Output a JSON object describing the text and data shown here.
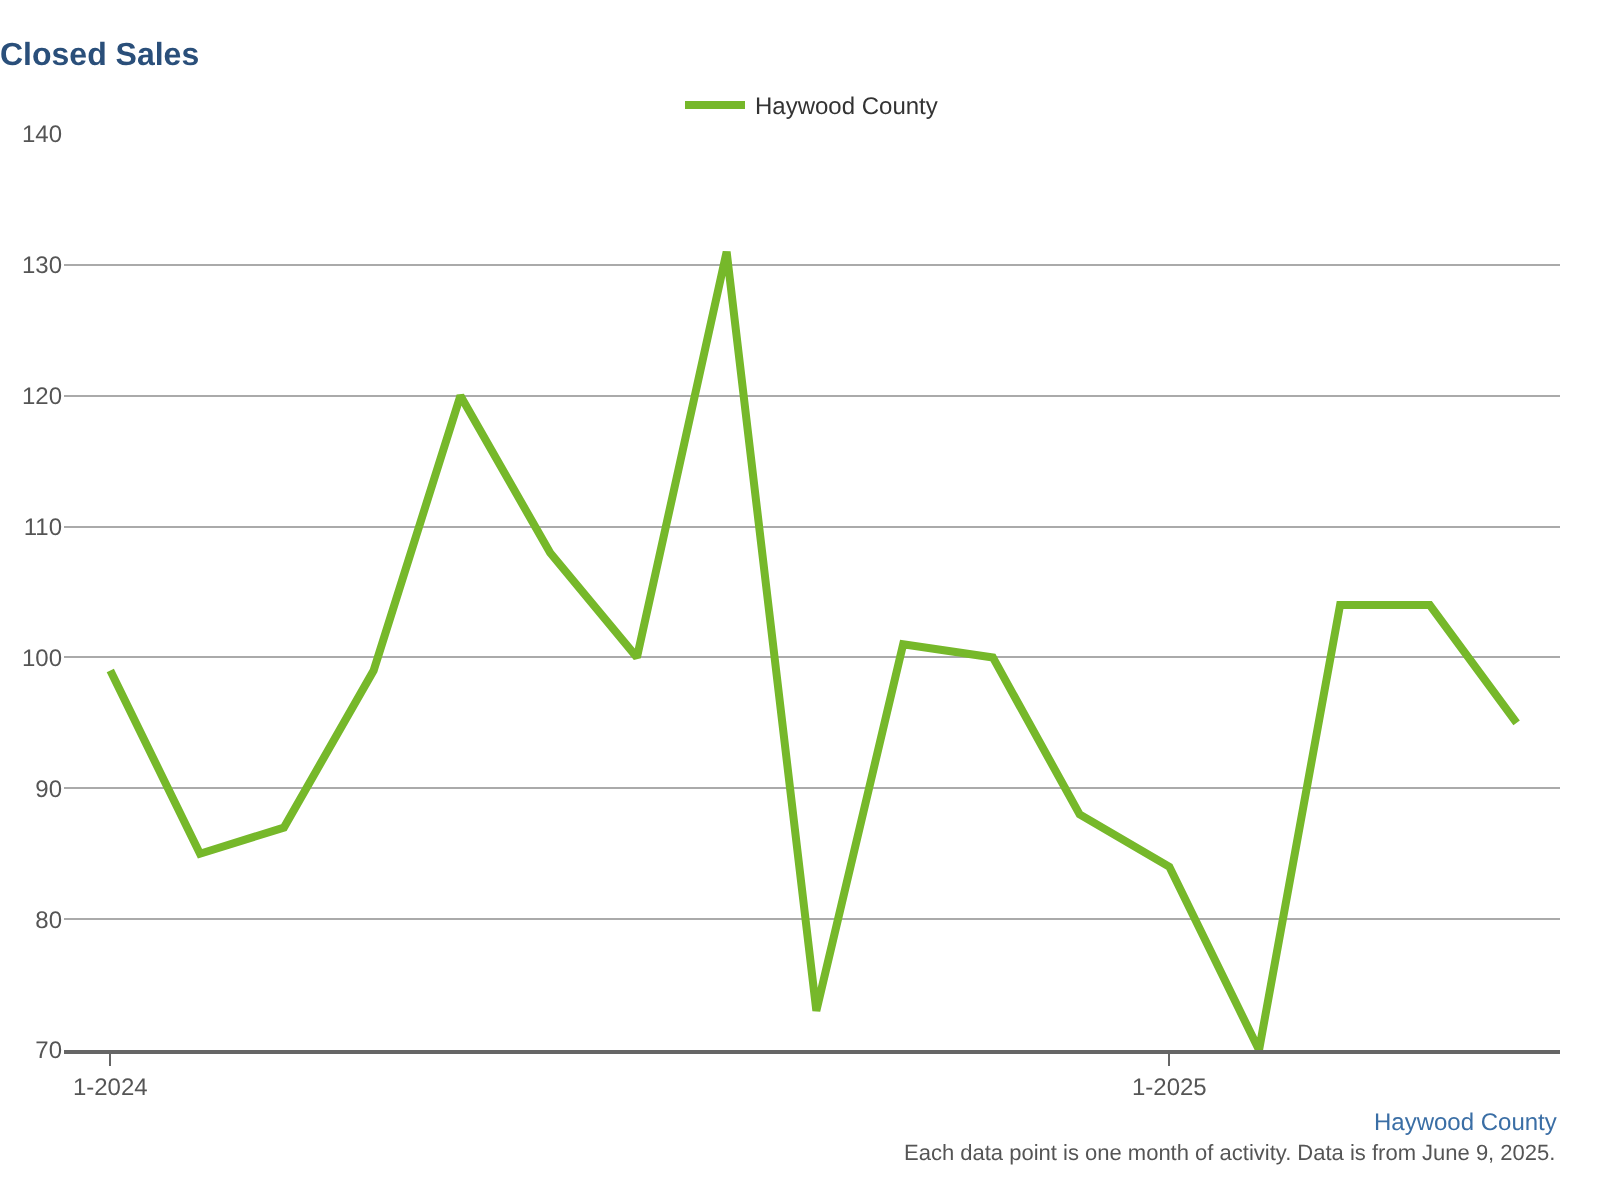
{
  "chart_data": {
    "type": "line",
    "title": "Closed Sales",
    "x": [
      "2024-01",
      "2024-02",
      "2024-03",
      "2024-04",
      "2024-05",
      "2024-06",
      "2024-07",
      "2024-08",
      "2024-09",
      "2024-10",
      "2024-11",
      "2024-12",
      "2025-01",
      "2025-02",
      "2025-03",
      "2025-04",
      "2025-05"
    ],
    "series": [
      {
        "name": "Haywood County",
        "color": "#76b82a",
        "values": [
          99,
          85,
          87,
          99,
          120,
          108,
          100,
          131,
          73,
          101,
          100,
          88,
          84,
          70,
          104,
          104,
          95
        ]
      }
    ],
    "xlim": [
      "2023-12-16",
      "2025-05-16"
    ],
    "xticks": [
      {
        "value": "2024-01",
        "label": "1-2024"
      },
      {
        "value": "2025-01",
        "label": "1-2025"
      }
    ],
    "ylim": [
      70,
      140
    ],
    "yticks": [
      70,
      80,
      90,
      100,
      110,
      120,
      130,
      140
    ],
    "grid": "y",
    "legend": "top",
    "marker": "none",
    "line_style": "solid",
    "annotations": [
      "Haywood County",
      "Each data point is one month of activity. Data is from June 9, 2025."
    ]
  }
}
